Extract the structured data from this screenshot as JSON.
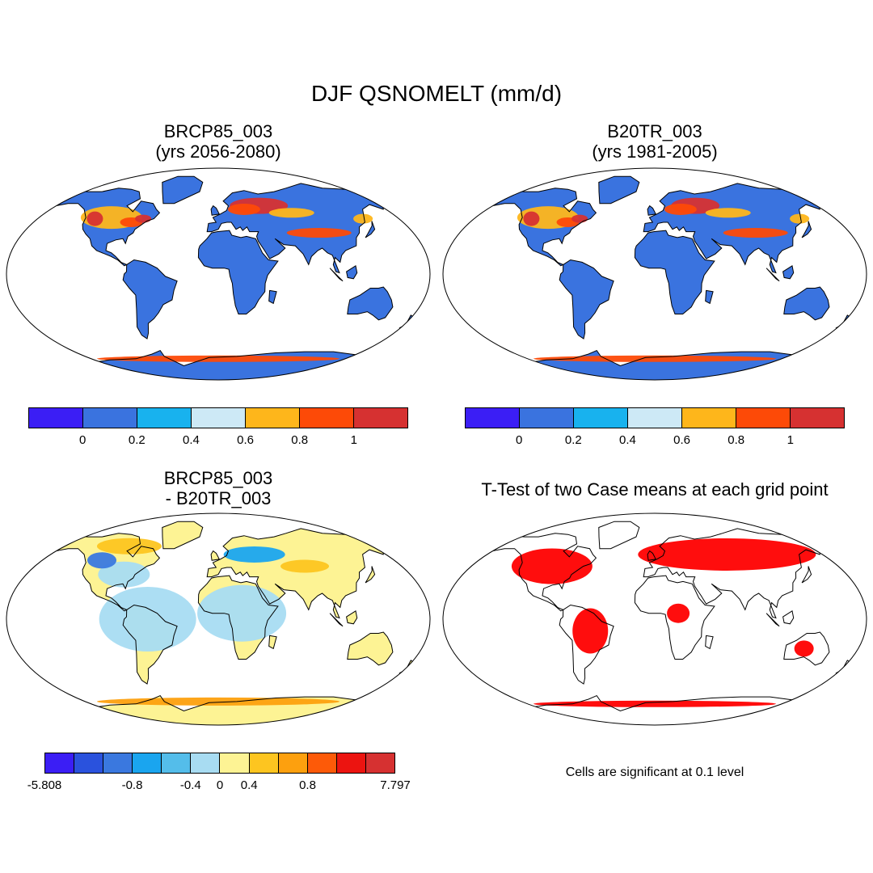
{
  "title": "DJF QSNOMELT (mm/d)",
  "panels": {
    "p1": {
      "title_line1": "BRCP85_003",
      "title_line2": "(yrs 2056-2080)"
    },
    "p2": {
      "title_line1": "B20TR_003",
      "title_line2": "(yrs 1981-2005)"
    },
    "p3": {
      "title_line1": "BRCP85_003",
      "title_line2": "- B20TR_003"
    },
    "p4": {
      "title_line1": "T-Test of two Case means at each grid point"
    }
  },
  "colorbar_top": {
    "colors": [
      "#3b1ef5",
      "#3a73df",
      "#18b2ee",
      "#cde9f6",
      "#feb61b",
      "#fd4a07",
      "#d63131"
    ],
    "ticks": [
      "0",
      "0.2",
      "0.4",
      "0.6",
      "0.8",
      "1"
    ]
  },
  "colorbar_diff": {
    "colors": [
      "#3b1ef5",
      "#2a52dd",
      "#3a78df",
      "#1aa5ef",
      "#54bdea",
      "#a8dcf2",
      "#fdf394",
      "#fdc520",
      "#fda00e",
      "#fd5a08",
      "#ec1410",
      "#d63131"
    ],
    "ticks": [
      "-5.808",
      "-0.8",
      "-0.4",
      "0",
      "0.4",
      "0.8",
      "7.797"
    ]
  },
  "significance_note": "Cells are significant at 0.1 level",
  "legend_colors": {
    "land_base": "#3a73df",
    "diff_base": "#fdf394",
    "diff_neg": "#a8dcf2",
    "ttest": "#ff0000"
  }
}
